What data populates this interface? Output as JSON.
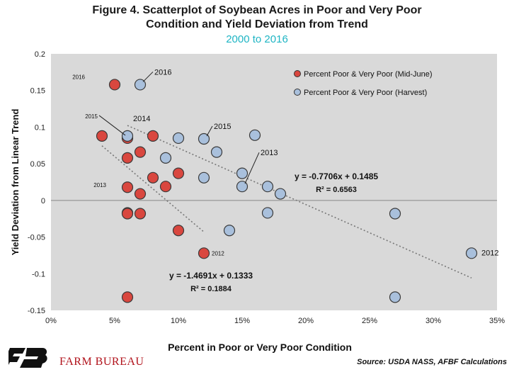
{
  "title_line1": "Figure 4. Scatterplot of Soybean Acres in Poor and Very Poor",
  "title_line2": "Condition and Yield Deviation from Trend",
  "subtitle": "2000 to 2016",
  "brand": "FARM BUREAU",
  "source": "Source: USDA NASS, AFBF Calculations",
  "colors": {
    "red": "#d9473f",
    "blue": "#a9c0dc",
    "plot_bg": "#d9d9d9",
    "accent": "#1fb5c4"
  },
  "chart_data": {
    "type": "scatter",
    "xlabel": "Percent in Poor or Very Poor Condition",
    "ylabel": "Yield Deviation from Linear Trend",
    "xlim": [
      0,
      0.35
    ],
    "ylim": [
      -0.15,
      0.2
    ],
    "xticks": [
      "0%",
      "5%",
      "10%",
      "15%",
      "20%",
      "25%",
      "30%",
      "35%"
    ],
    "yticks": [
      "0.2",
      "0.15",
      "0.1",
      "0.05",
      "0",
      "-0.05",
      "-0.1",
      "-0.15"
    ],
    "grid": false,
    "legend_position": "top-right",
    "series": [
      {
        "name": "Percent Poor & Very Poor (Mid-June)",
        "color": "#d9473f",
        "x": [
          0.05,
          0.04,
          0.06,
          0.06,
          0.07,
          0.08,
          0.06,
          0.08,
          0.1,
          0.06,
          0.07,
          0.09,
          0.06,
          0.07,
          0.1,
          0.12,
          0.06
        ],
        "y": [
          0.158,
          0.088,
          0.085,
          0.058,
          0.066,
          0.088,
          0.018,
          0.031,
          0.037,
          -0.017,
          0.009,
          0.019,
          -0.018,
          -0.018,
          -0.041,
          -0.072,
          -0.132
        ]
      },
      {
        "name": "Percent Poor & Very Poor (Harvest)",
        "color": "#a9c0dc",
        "x": [
          0.07,
          0.06,
          0.1,
          0.12,
          0.16,
          0.13,
          0.09,
          0.15,
          0.15,
          0.12,
          0.17,
          0.18,
          0.17,
          0.14,
          0.27,
          0.33,
          0.27
        ],
        "y": [
          0.158,
          0.088,
          0.085,
          0.084,
          0.089,
          0.066,
          0.058,
          0.037,
          0.019,
          0.031,
          0.019,
          0.009,
          -0.017,
          -0.041,
          -0.018,
          -0.072,
          -0.132
        ]
      }
    ],
    "trendlines": [
      {
        "series": "Percent Poor & Very Poor (Harvest)",
        "equation": "y = -0.7706x + 0.1485",
        "r2": "R² = 0.6563",
        "slope": -0.7706,
        "intercept": 0.1485,
        "x_range": [
          0.06,
          0.33
        ]
      },
      {
        "series": "Percent Poor & Very Poor (Mid-June)",
        "equation": "y = -1.4691x + 0.1333",
        "r2": "R² = 0.1884",
        "slope": -1.4691,
        "intercept": 0.1333,
        "x_range": [
          0.04,
          0.12
        ]
      }
    ],
    "annotations": [
      {
        "text": "2016",
        "series": 0,
        "x": 0.05,
        "y": 0.158
      },
      {
        "text": "2016",
        "series": 1,
        "x": 0.07,
        "y": 0.158
      },
      {
        "text": "2015",
        "series": 0,
        "x": 0.06,
        "y": 0.085
      },
      {
        "text": "2014",
        "series": 1,
        "x": 0.06,
        "y": 0.088
      },
      {
        "text": "2015",
        "series": 1,
        "x": 0.12,
        "y": 0.084
      },
      {
        "text": "2013",
        "series": 1,
        "x": 0.15,
        "y": 0.019
      },
      {
        "text": "2013",
        "series": 0,
        "x": 0.06,
        "y": 0.018
      },
      {
        "text": "2012",
        "series": 0,
        "x": 0.12,
        "y": -0.072
      },
      {
        "text": "2012",
        "series": 1,
        "x": 0.33,
        "y": -0.072
      }
    ]
  }
}
